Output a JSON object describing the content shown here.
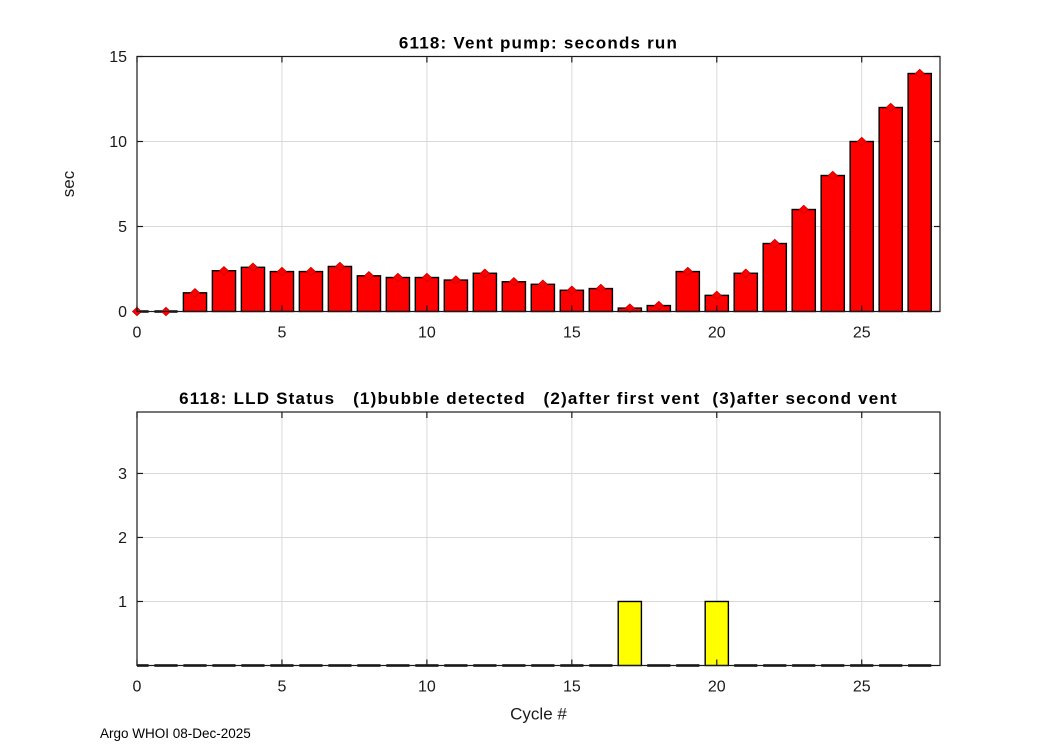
{
  "figure": {
    "background": "#ffffff",
    "footer_text": "Argo WHOI 08-Dec-2025"
  },
  "chart_data": [
    {
      "id": "vent_pump",
      "type": "bar",
      "title": "6118: Vent pump: seconds run",
      "xlabel": "",
      "ylabel": "sec",
      "x": [
        0,
        1,
        2,
        3,
        4,
        5,
        6,
        7,
        8,
        9,
        10,
        11,
        12,
        13,
        14,
        15,
        16,
        17,
        18,
        19,
        20,
        21,
        22,
        23,
        24,
        25,
        26,
        27
      ],
      "values": [
        0,
        0,
        1.1,
        2.4,
        2.6,
        2.35,
        2.35,
        2.65,
        2.1,
        2.0,
        2.0,
        1.85,
        2.25,
        1.75,
        1.6,
        1.25,
        1.35,
        0.2,
        0.35,
        2.35,
        0.95,
        2.25,
        4,
        6,
        8,
        10,
        12,
        14
      ],
      "bar_color": "#ff0000",
      "bar_edge_color": "#000000",
      "marker": "diamond",
      "marker_color": "#ff0000",
      "xlim": [
        0,
        27.7
      ],
      "ylim": [
        0,
        15
      ],
      "xticks": [
        0,
        5,
        10,
        15,
        20,
        25
      ],
      "yticks": [
        0,
        5,
        10,
        15
      ],
      "grid": true,
      "grid_color": "#d9d9d9",
      "legend": "none"
    },
    {
      "id": "lld_status",
      "type": "bar",
      "title": "6118: LLD Status   (1)bubble detected   (2)after first vent  (3)after second vent",
      "xlabel": "Cycle #",
      "ylabel": "",
      "x": [
        0,
        1,
        2,
        3,
        4,
        5,
        6,
        7,
        8,
        9,
        10,
        11,
        12,
        13,
        14,
        15,
        16,
        17,
        18,
        19,
        20,
        21,
        22,
        23,
        24,
        25,
        26,
        27
      ],
      "values": [
        0,
        0,
        0,
        0,
        0,
        0,
        0,
        0,
        0,
        0,
        0,
        0,
        0,
        0,
        0,
        0,
        0,
        1,
        0,
        0,
        1,
        0,
        0,
        0,
        0,
        0,
        0,
        0
      ],
      "bar_color": "#ffff00",
      "bar_edge_color": "#000000",
      "marker": "none",
      "marker_color": "#ffff00",
      "xlim": [
        0,
        27.7
      ],
      "ylim": [
        0,
        3.96
      ],
      "xticks": [
        0,
        5,
        10,
        15,
        20,
        25
      ],
      "yticks": [
        1,
        2,
        3
      ],
      "grid": true,
      "grid_color": "#d9d9d9",
      "legend": "none"
    }
  ]
}
